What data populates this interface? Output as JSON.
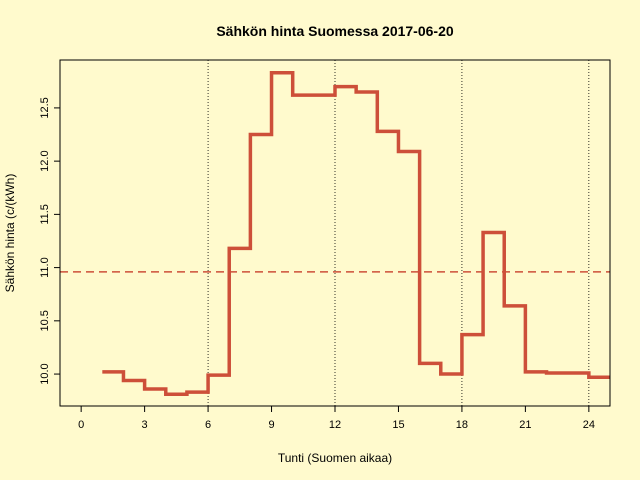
{
  "chart_data": {
    "type": "line",
    "title": "Sähkön hinta Suomessa 2017-06-20",
    "xlabel": "Tunti (Suomen aikaa)",
    "ylabel": "Sähkön hinta (c/(kWh)",
    "xlim": [
      -1,
      25
    ],
    "ylim": [
      9.7,
      12.95
    ],
    "x_ticks": [
      0,
      3,
      6,
      9,
      12,
      15,
      18,
      21,
      24
    ],
    "y_ticks": [
      10.0,
      10.5,
      11.0,
      11.5,
      12.0,
      12.5
    ],
    "vertical_reference_lines": [
      6,
      12,
      18,
      24
    ],
    "mean_line": 10.96,
    "series": [
      {
        "step": "post",
        "color": "#cd4f39",
        "x": [
          1,
          2,
          3,
          4,
          5,
          6,
          7,
          8,
          9,
          10,
          11,
          12,
          13,
          14,
          15,
          16,
          17,
          18,
          19,
          20,
          21,
          22,
          23,
          24,
          25
        ],
        "values": [
          10.02,
          9.94,
          9.86,
          9.81,
          9.83,
          9.99,
          11.18,
          12.25,
          12.83,
          12.62,
          12.62,
          12.7,
          12.65,
          12.28,
          12.09,
          10.1,
          10.0,
          10.37,
          11.33,
          10.64,
          10.02,
          10.01,
          10.01,
          9.97,
          9.97
        ]
      }
    ]
  }
}
